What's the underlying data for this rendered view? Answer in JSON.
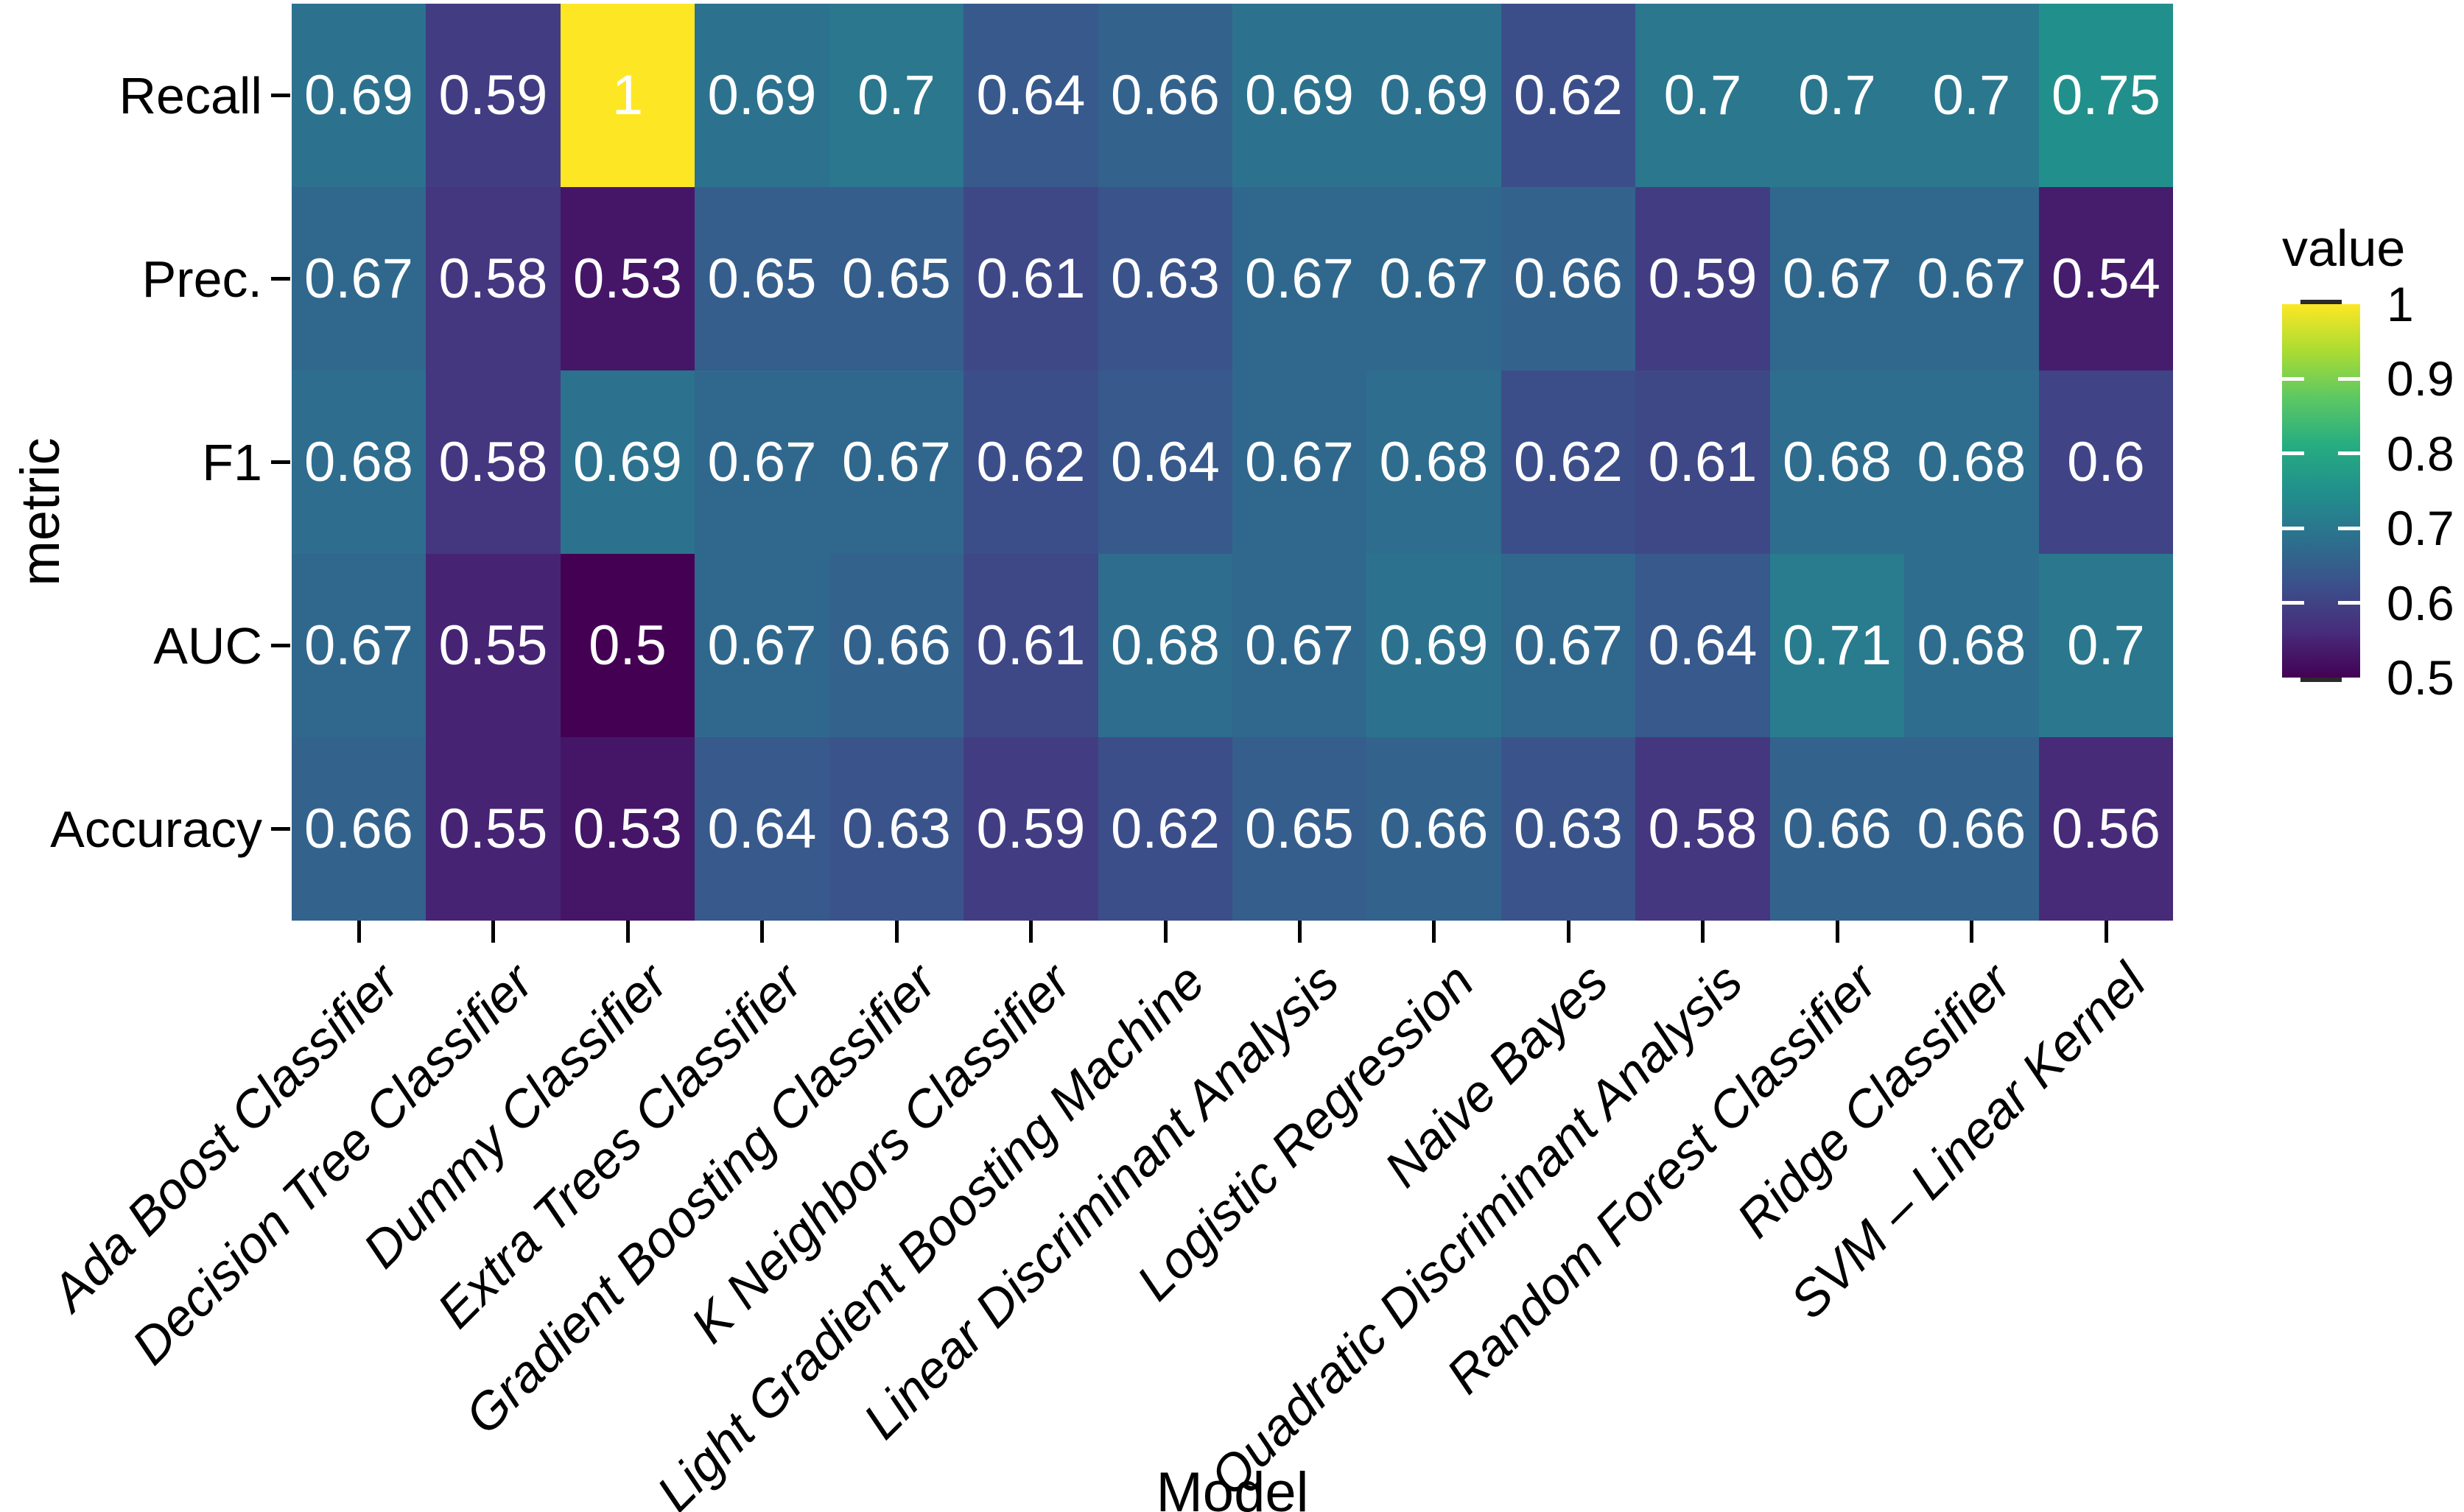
{
  "chart_data": {
    "type": "heatmap",
    "title": "",
    "xlabel": "Model",
    "ylabel": "metric",
    "rows": [
      "Recall",
      "Prec.",
      "F1",
      "AUC",
      "Accuracy"
    ],
    "categories": [
      "Ada Boost Classifier",
      "Decision Tree Classifier",
      "Dummy Classifier",
      "Extra Trees Classifier",
      "Gradient Boosting Classifier",
      "K Neighbors Classifier",
      "Light Gradient Boosting Machine",
      "Linear Discriminant Analysis",
      "Logistic Regression",
      "Naive Bayes",
      "Quadratic Discriminant Analysis",
      "Random Forest Classifier",
      "Ridge Classifier",
      "SVM – Linear Kernel"
    ],
    "series": [
      {
        "name": "Recall",
        "values": [
          0.69,
          0.59,
          1,
          0.69,
          0.7,
          0.64,
          0.66,
          0.69,
          0.69,
          0.62,
          0.7,
          0.7,
          0.7,
          0.75
        ]
      },
      {
        "name": "Prec.",
        "values": [
          0.67,
          0.58,
          0.53,
          0.65,
          0.65,
          0.61,
          0.63,
          0.67,
          0.67,
          0.66,
          0.59,
          0.67,
          0.67,
          0.54
        ]
      },
      {
        "name": "F1",
        "values": [
          0.68,
          0.58,
          0.69,
          0.67,
          0.67,
          0.62,
          0.64,
          0.67,
          0.68,
          0.62,
          0.61,
          0.68,
          0.68,
          0.6
        ]
      },
      {
        "name": "AUC",
        "values": [
          0.67,
          0.55,
          0.5,
          0.67,
          0.66,
          0.61,
          0.68,
          0.67,
          0.69,
          0.67,
          0.64,
          0.71,
          0.68,
          0.7
        ]
      },
      {
        "name": "Accuracy",
        "values": [
          0.66,
          0.55,
          0.53,
          0.64,
          0.63,
          0.59,
          0.62,
          0.65,
          0.66,
          0.63,
          0.58,
          0.66,
          0.66,
          0.56
        ]
      }
    ],
    "legend": {
      "title": "value",
      "ticks": [
        "1",
        "0.9",
        "0.8",
        "0.7",
        "0.6",
        "0.5"
      ],
      "domain": [
        0.5,
        1
      ],
      "position": "right"
    },
    "colors": {
      "palette": "viridis",
      "stops": [
        "#440154",
        "#472d7b",
        "#3b518b",
        "#2c718e",
        "#21908c",
        "#27ad81",
        "#5dc863",
        "#aadc32",
        "#fde725"
      ],
      "cell_text": "#ffffff",
      "axis_text": "#000000"
    },
    "grid": "off"
  }
}
